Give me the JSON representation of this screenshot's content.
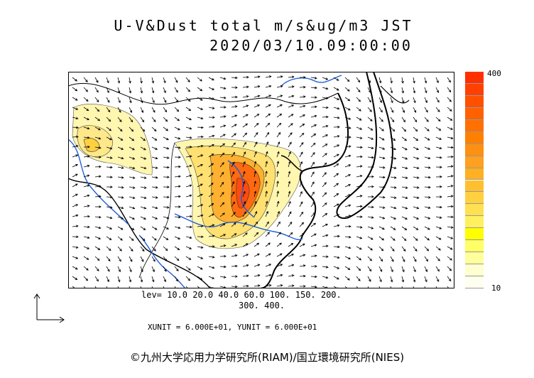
{
  "title_line1": "U-V&Dust total m/s&ug/m3 JST",
  "title_line2": "2020/03/10.09:00:00",
  "colorbar": {
    "max_label": "400",
    "min_label": "10",
    "colors": [
      "#fffff0",
      "#ffffd0",
      "#ffff9c",
      "#ffff66",
      "#ffff00",
      "#fff060",
      "#ffe050",
      "#ffd040",
      "#ffc030",
      "#ffb020",
      "#ffa020",
      "#ff9010",
      "#ff8000",
      "#ff7000",
      "#ff6000",
      "#ff5000",
      "#ff4000",
      "#ff3000"
    ]
  },
  "levels_line1": "lev= 10.0 20.0 40.0 60.0 100. 150. 200.",
  "levels_line2": "300. 400.",
  "units_text": "XUNIT = 6.000E+01, YUNIT = 6.000E+01",
  "copyright": "©九州大学応用力学研究所(RIAM)/国立環境研究所(NIES)",
  "colors": {
    "coast": "#000000",
    "river": "#1f5fd8",
    "dust_low": "#fff6b0",
    "dust_mid": "#ffd040",
    "dust_high": "#ff5a10"
  }
}
